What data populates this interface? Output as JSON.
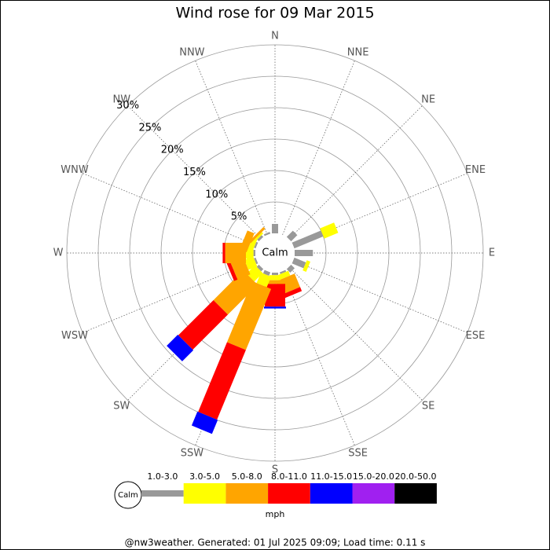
{
  "chart_data": {
    "type": "wind_rose",
    "title": "Wind rose for 09 Mar 2015",
    "directions": [
      "N",
      "NNE",
      "NE",
      "ENE",
      "E",
      "ESE",
      "SE",
      "SSE",
      "S",
      "SSW",
      "SW",
      "WSW",
      "W",
      "WNW",
      "NW",
      "NNW"
    ],
    "calm_label": "Calm",
    "rlim": [
      0,
      30
    ],
    "rticks": [
      {
        "value": 5,
        "label": "5%"
      },
      {
        "value": 10,
        "label": "10%"
      },
      {
        "value": 15,
        "label": "15%"
      },
      {
        "value": 20,
        "label": "20%"
      },
      {
        "value": 25,
        "label": "25%"
      },
      {
        "value": 30,
        "label": "30%"
      }
    ],
    "series": [
      {
        "name": "1.0-3.0",
        "color": "#999999",
        "values": [
          1.5,
          0,
          1.4,
          5.0,
          2.9,
          2.0,
          0.8,
          0.3,
          0.4,
          0.6,
          0.5,
          0.3,
          0.3,
          0.3,
          0.4,
          0.3
        ]
      },
      {
        "name": "3.0-5.0",
        "color": "#ffff00",
        "values": [
          0,
          0,
          0,
          2.4,
          0,
          0.6,
          0,
          0.8,
          0.8,
          1.8,
          1.9,
          1.5,
          1.2,
          0.8,
          0.3,
          0
        ]
      },
      {
        "name": "5.0-8.0",
        "color": "#ffa500",
        "values": [
          0,
          0,
          0,
          0,
          0,
          0,
          0,
          2.3,
          0.6,
          10.5,
          6.7,
          2.2,
          3.3,
          1.2,
          0.4,
          0
        ]
      },
      {
        "name": "8.0-11.0",
        "color": "#ff0000",
        "values": [
          0,
          0,
          0,
          0,
          0,
          0,
          0,
          0.7,
          3.6,
          12.0,
          7.9,
          0.6,
          0.4,
          0,
          0,
          0
        ]
      },
      {
        "name": "11.0-15.0",
        "color": "#0000ff",
        "values": [
          0,
          0,
          0,
          0,
          0,
          0,
          0,
          0,
          0.3,
          2.4,
          2.5,
          0,
          0,
          0,
          0,
          0
        ]
      },
      {
        "name": "15.0-20.0",
        "color": "#a020f0",
        "values": [
          0,
          0,
          0,
          0,
          0,
          0,
          0,
          0,
          0,
          0,
          0,
          0,
          0,
          0,
          0,
          0
        ]
      },
      {
        "name": "20.0-50.0",
        "color": "#000000",
        "values": [
          0,
          0,
          0,
          0,
          0,
          0,
          0,
          0,
          0,
          0,
          0,
          0,
          0,
          0,
          0,
          0
        ]
      }
    ],
    "unit_label": "mph",
    "footer": "@nw3weather. Generated: 01 Jul 2025 09:09; Load time: 0.11 s"
  }
}
